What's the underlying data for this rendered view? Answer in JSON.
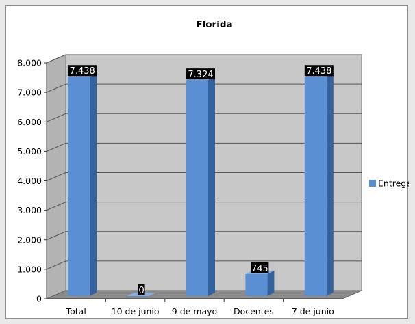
{
  "chart_data": {
    "type": "bar",
    "title": "Florida",
    "categories": [
      "Total",
      "10 de junio",
      "9 de mayo",
      "Docentes",
      "7 de junio"
    ],
    "series": [
      {
        "name": "Entregas",
        "values": [
          7438,
          0,
          7324,
          745,
          7438
        ]
      }
    ],
    "data_labels": [
      "7.438",
      "0",
      "7.324",
      "745",
      "7.438"
    ],
    "ylim": [
      0,
      8000
    ],
    "y_ticks": [
      0,
      1000,
      2000,
      3000,
      4000,
      5000,
      6000,
      7000,
      8000
    ],
    "y_tick_labels": [
      "0",
      "1.000",
      "2.000",
      "3.000",
      "4.000",
      "5.000",
      "6.000",
      "7.000",
      "8.000"
    ],
    "xlabel": "",
    "ylabel": "",
    "grid": true,
    "legend_position": "right",
    "three_d": true
  },
  "colors": {
    "bar_front": "#5b8fd4",
    "bar_side": "#34629f",
    "bar_top": "#86acde",
    "wall": "#c8c8c8",
    "floor": "#8a8a8a",
    "label_background": "#000000"
  }
}
